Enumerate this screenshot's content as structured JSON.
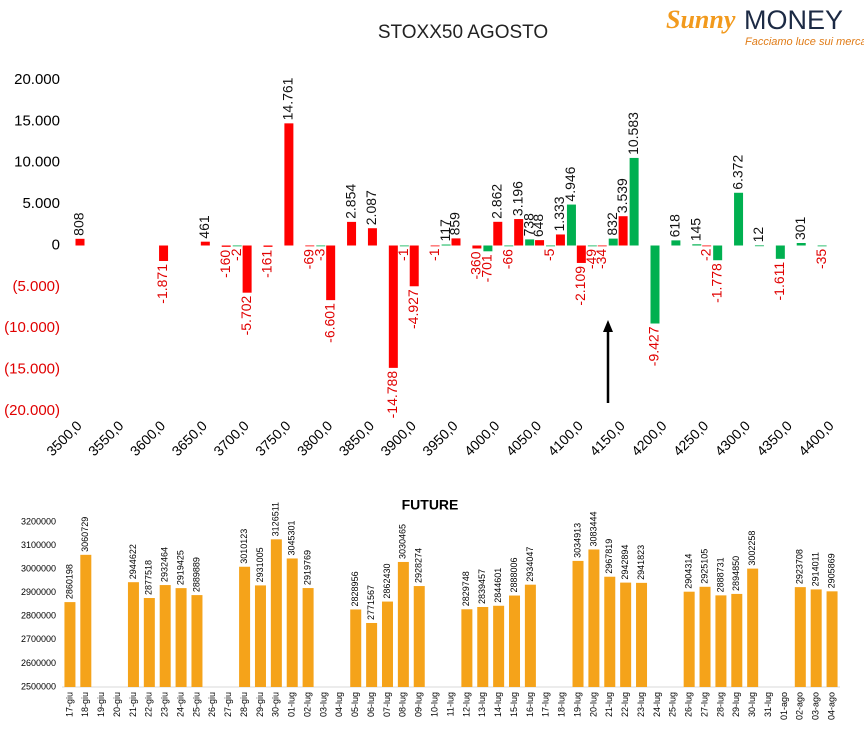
{
  "logo": {
    "name_a": "Sunny",
    "name_b": "MONEY",
    "tagline": "Facciamo luce sui mercati"
  },
  "chart_data": [
    {
      "type": "bar",
      "title": "STOXX50 AGOSTO",
      "x": [
        3500,
        3525,
        3550,
        3575,
        3600,
        3625,
        3650,
        3675,
        3700,
        3725,
        3750,
        3775,
        3800,
        3825,
        3850,
        3875,
        3900,
        3925,
        3950,
        3975,
        4000,
        4025,
        4050,
        4075,
        4100,
        4125,
        4150,
        4175,
        4200,
        4225,
        4250,
        4275,
        4300,
        4325,
        4350,
        4375,
        4400
      ],
      "series": [
        {
          "color": "#ff0000",
          "values": [
            808,
            null,
            null,
            null,
            -1871,
            null,
            461,
            -160,
            -5702,
            -161,
            14761,
            -69,
            -6601,
            2854,
            2087,
            -14788,
            -4927,
            -1,
            859,
            -360,
            2862,
            3196,
            648,
            1333,
            -2109,
            -34,
            3539,
            null,
            null,
            null,
            -2,
            null,
            null,
            null,
            null,
            null,
            null
          ],
          "value_labels": [
            "808",
            null,
            null,
            null,
            "-1.871",
            null,
            "461",
            "-160",
            "-5.702",
            "-161",
            "14.761",
            "-69",
            "-6.601",
            "2.854",
            "2.087",
            "-14.788",
            "-4.927",
            "-1",
            "859",
            "-360",
            "2.862",
            "3.196",
            "648",
            "1.333",
            "-2.109",
            "-34",
            "3.539",
            null,
            null,
            null,
            "-2",
            null,
            null,
            null,
            null,
            null,
            null
          ]
        },
        {
          "color": "#00b050",
          "values": [
            null,
            null,
            null,
            null,
            null,
            null,
            null,
            -2,
            null,
            null,
            null,
            -3,
            null,
            null,
            null,
            -1,
            null,
            117,
            null,
            -701,
            -66,
            738,
            -5,
            4946,
            -49,
            832,
            10583,
            -9427,
            618,
            145,
            -1778,
            6372,
            12,
            -1611,
            301,
            -35,
            null
          ],
          "value_labels": [
            null,
            null,
            null,
            null,
            null,
            null,
            null,
            "-2",
            null,
            null,
            null,
            "-3",
            null,
            null,
            null,
            "-1",
            null,
            "117",
            null,
            "-701",
            "-66",
            "738",
            "-5",
            "4.946",
            "-49",
            "832",
            "10.583",
            "-9.427",
            "618",
            "145",
            "-1.778",
            "6.372",
            "12",
            "-1.611",
            "301",
            "-35",
            null
          ]
        }
      ],
      "xlim": [
        3500,
        4400
      ],
      "xticks": [
        {
          "value": 3500,
          "label": "3500,0"
        },
        {
          "value": 3550,
          "label": "3550,0"
        },
        {
          "value": 3600,
          "label": "3600,0"
        },
        {
          "value": 3650,
          "label": "3650,0"
        },
        {
          "value": 3700,
          "label": "3700,0"
        },
        {
          "value": 3750,
          "label": "3750,0"
        },
        {
          "value": 3800,
          "label": "3800,0"
        },
        {
          "value": 3850,
          "label": "3850,0"
        },
        {
          "value": 3900,
          "label": "3900,0"
        },
        {
          "value": 3950,
          "label": "3950,0"
        },
        {
          "value": 4000,
          "label": "4000,0"
        },
        {
          "value": 4050,
          "label": "4050,0"
        },
        {
          "value": 4100,
          "label": "4100,0"
        },
        {
          "value": 4150,
          "label": "4150,0"
        },
        {
          "value": 4200,
          "label": "4200,0"
        },
        {
          "value": 4250,
          "label": "4250,0"
        },
        {
          "value": 4300,
          "label": "4300,0"
        },
        {
          "value": 4350,
          "label": "4350,0"
        },
        {
          "value": 4400,
          "label": "4400,0"
        }
      ],
      "ylim": [
        -20000,
        20000
      ],
      "yticks": [
        {
          "value": 20000,
          "label": "20.000"
        },
        {
          "value": 15000,
          "label": "15.000"
        },
        {
          "value": 10000,
          "label": "10.000"
        },
        {
          "value": 5000,
          "label": "5.000"
        },
        0,
        {
          "value": -5000,
          "label": "(5.000)"
        },
        {
          "value": -10000,
          "label": "(10.000)"
        },
        {
          "value": -15000,
          "label": "(15.000)"
        },
        {
          "value": -20000,
          "label": "(20.000)"
        }
      ]
    },
    {
      "type": "bar",
      "title": "FUTURE",
      "color": "#f5a31a",
      "categories": [
        "17-giu",
        "18-giu",
        "19-giu",
        "20-giu",
        "21-giu",
        "22-giu",
        "23-giu",
        "24-giu",
        "25-giu",
        "26-giu",
        "27-giu",
        "28-giu",
        "29-giu",
        "30-giu",
        "01-lug",
        "02-lug",
        "03-lug",
        "04-lug",
        "05-lug",
        "06-lug",
        "07-lug",
        "08-lug",
        "09-lug",
        "10-lug",
        "11-lug",
        "12-lug",
        "13-lug",
        "14-lug",
        "15-lug",
        "16-lug",
        "17-lug",
        "18-lug",
        "19-lug",
        "20-lug",
        "21-lug",
        "22-lug",
        "23-lug",
        "24-lug",
        "25-lug",
        "26-lug",
        "27-lug",
        "28-lug",
        "29-lug",
        "30-lug",
        "31-lug",
        "01-ago",
        "02-ago",
        "03-ago",
        "04-ago"
      ],
      "values": [
        2860198,
        3060729,
        null,
        null,
        2944622,
        2877518,
        2932464,
        2919425,
        2889889,
        null,
        null,
        3010123,
        2931005,
        3126511,
        3045301,
        2919769,
        null,
        null,
        2828956,
        2771567,
        2862430,
        3030465,
        2928274,
        null,
        null,
        2829748,
        2839457,
        2844601,
        2888006,
        2934047,
        null,
        null,
        3034913,
        3083444,
        2967819,
        2942894,
        2941823,
        null,
        null,
        2904314,
        2925105,
        2888731,
        2894850,
        3002258,
        null,
        null,
        2923708,
        2914011,
        2905869
      ],
      "ylim": [
        2500000,
        3200000
      ],
      "yticks": [
        2500000,
        2600000,
        2700000,
        2800000,
        2900000,
        3000000,
        3100000,
        3200000
      ]
    }
  ]
}
